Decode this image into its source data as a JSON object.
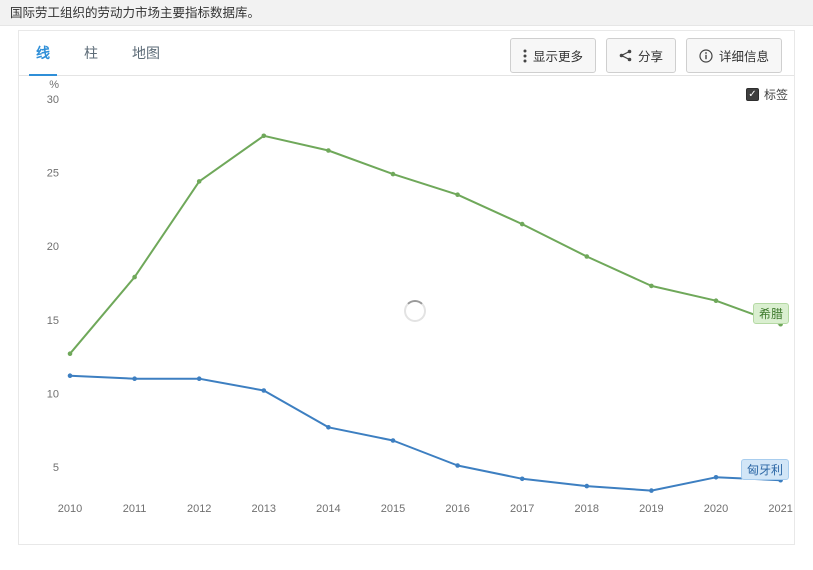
{
  "header": {
    "description": "国际劳工组织的劳动力市场主要指标数据库。"
  },
  "tabs": [
    {
      "label": "线",
      "active": true
    },
    {
      "label": "柱",
      "active": false
    },
    {
      "label": "地图",
      "active": false
    }
  ],
  "toolbar": {
    "show_more_label": "显示更多",
    "share_label": "分享",
    "details_label": "详细信息"
  },
  "legend_toggle": {
    "label": "标签",
    "checked": true,
    "check_glyph": "✓"
  },
  "chart_data": {
    "type": "line",
    "title": "",
    "ylabel": "%",
    "xlabel": "",
    "ylim": [
      2,
      31
    ],
    "yticks": [
      5,
      10,
      15,
      20,
      25,
      30
    ],
    "grid": false,
    "x": [
      2010,
      2011,
      2012,
      2013,
      2014,
      2015,
      2016,
      2017,
      2018,
      2019,
      2020,
      2021
    ],
    "series": [
      {
        "name": "希腊",
        "color": "#6fa85a",
        "badge_bg": "#daefd0",
        "badge_border": "#b5d9a4",
        "badge_text": "#3d7a2c",
        "values": [
          12.7,
          17.9,
          24.4,
          27.5,
          26.5,
          24.9,
          23.5,
          21.5,
          19.3,
          17.3,
          16.3,
          14.7
        ]
      },
      {
        "name": "匈牙利",
        "color": "#3d7fc1",
        "badge_bg": "#d2e6f7",
        "badge_border": "#a8cdee",
        "badge_text": "#2c67a5",
        "values": [
          11.2,
          11.0,
          11.0,
          10.2,
          7.7,
          6.8,
          5.1,
          4.2,
          3.7,
          3.4,
          4.3,
          4.1
        ]
      }
    ],
    "loading": true
  }
}
